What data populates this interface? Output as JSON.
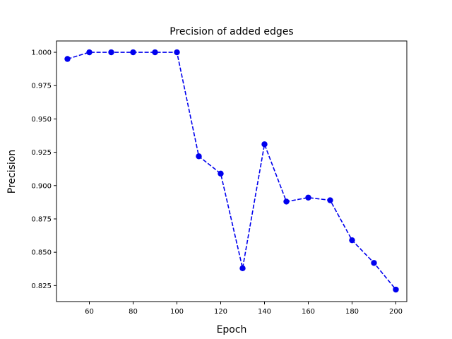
{
  "chart_data": {
    "type": "line",
    "title": "Precision of added edges",
    "xlabel": "Epoch",
    "ylabel": "Precision",
    "xlim": [
      45,
      205
    ],
    "ylim": [
      0.813,
      1.0085
    ],
    "xticks": [
      60,
      80,
      100,
      120,
      140,
      160,
      180,
      200
    ],
    "yticks": [
      0.825,
      0.85,
      0.875,
      0.9,
      0.925,
      0.95,
      0.975,
      1.0
    ],
    "ytick_labels": [
      "0.825",
      "0.850",
      "0.875",
      "0.900",
      "0.925",
      "0.950",
      "0.975",
      "1.000"
    ],
    "grid": false,
    "series": [
      {
        "color": "#0000ee",
        "line_style": "dashed",
        "marker": "circle",
        "x": [
          50,
          60,
          70,
          80,
          90,
          100,
          110,
          120,
          130,
          140,
          150,
          160,
          170,
          180,
          190,
          200
        ],
        "y": [
          0.995,
          1.0,
          1.0,
          1.0,
          1.0,
          1.0,
          0.922,
          0.909,
          0.838,
          0.931,
          0.888,
          0.891,
          0.889,
          0.859,
          0.842,
          0.822
        ]
      }
    ]
  }
}
